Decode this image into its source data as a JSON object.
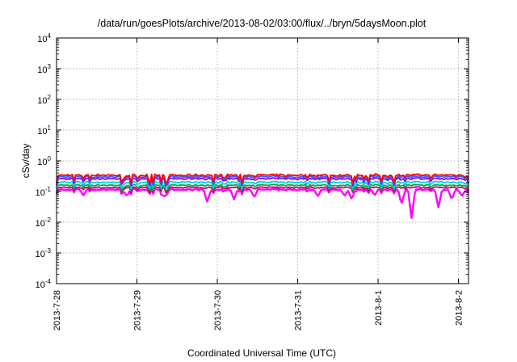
{
  "chart_data": {
    "type": "line",
    "title": "/data/run/goesPlots/archive/2013-08-02/03:00/flux/../bryn/5daysMoon.plot",
    "xlabel": "Coordinated Universal Time (UTC)",
    "ylabel": "cSv/day",
    "yscale": "log",
    "ylim": [
      0.0001,
      10000
    ],
    "y_ticks": [
      {
        "base": "10",
        "exp": "-4",
        "value": 0.0001
      },
      {
        "base": "10",
        "exp": "-3",
        "value": 0.001
      },
      {
        "base": "10",
        "exp": "-2",
        "value": 0.01
      },
      {
        "base": "10",
        "exp": "-1",
        "value": 0.1
      },
      {
        "base": "10",
        "exp": "0",
        "value": 1
      },
      {
        "base": "10",
        "exp": "1",
        "value": 10
      },
      {
        "base": "10",
        "exp": "2",
        "value": 100
      },
      {
        "base": "10",
        "exp": "3",
        "value": 1000
      },
      {
        "base": "10",
        "exp": "4",
        "value": 10000
      }
    ],
    "x_ticks": [
      "2013-7-28",
      "2013-7-29",
      "2013-7-30",
      "2013-7-31",
      "2013-8-1",
      "2013-8-2"
    ],
    "xlim": [
      "2013-07-28 00:00",
      "2013-08-02 03:00"
    ],
    "grid": true,
    "series": [
      {
        "color": "#ff00ff",
        "base": 0.115,
        "dips": [
          {
            "x": "2013-07-28 08:00",
            "y": 0.075
          },
          {
            "x": "2013-07-28 21:00",
            "y": 0.07
          },
          {
            "x": "2013-07-29 08:00",
            "y": 0.065
          },
          {
            "x": "2013-07-29 21:00",
            "y": 0.045
          },
          {
            "x": "2013-07-30 05:00",
            "y": 0.055
          },
          {
            "x": "2013-07-30 11:00",
            "y": 0.065
          },
          {
            "x": "2013-07-31 06:00",
            "y": 0.07
          },
          {
            "x": "2013-07-31 14:00",
            "y": 0.072
          },
          {
            "x": "2013-07-31 16:00",
            "y": 0.06
          },
          {
            "x": "2013-07-31 23:00",
            "y": 0.075
          },
          {
            "x": "2013-08-01 07:00",
            "y": 0.038
          },
          {
            "x": "2013-08-01 10:00",
            "y": 0.013
          },
          {
            "x": "2013-08-01 18:00",
            "y": 0.03
          },
          {
            "x": "2013-08-01 22:00",
            "y": 0.055
          },
          {
            "x": "2013-08-02 01:00",
            "y": 0.07
          },
          {
            "x": "2013-08-02 07:00",
            "y": 0.06
          },
          {
            "x": "2013-08-02 22:00",
            "y": 0.08
          }
        ]
      },
      {
        "color": "#cc0066",
        "base": 0.135
      },
      {
        "color": "#00aa55",
        "base": 0.16
      },
      {
        "color": "#00d0d0",
        "base": 0.2
      },
      {
        "color": "#8800ff",
        "base": 0.26
      },
      {
        "color": "#3366ff",
        "base": 0.3
      },
      {
        "color": "#ff0000",
        "base": 0.34
      }
    ]
  }
}
